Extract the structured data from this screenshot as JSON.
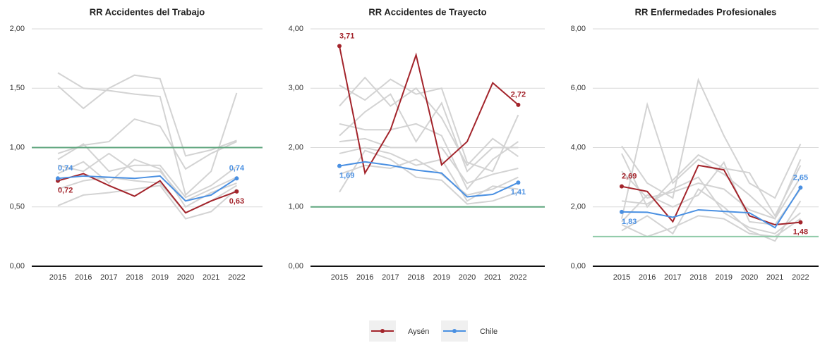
{
  "chart_data": [
    {
      "type": "line",
      "title": "RR Accidentes del Trabajo",
      "categories": [
        "2015",
        "2016",
        "2017",
        "2018",
        "2019",
        "2020",
        "2021",
        "2022"
      ],
      "ylim": [
        0,
        2
      ],
      "yticks": [
        {
          "value": 0,
          "label": "0,00"
        },
        {
          "value": 0.5,
          "label": "0,50"
        },
        {
          "value": 1,
          "label": "1,00"
        },
        {
          "value": 1.5,
          "label": "1,50"
        },
        {
          "value": 2,
          "label": "2,00"
        }
      ],
      "grid": true,
      "reference_line": {
        "value": 1,
        "color": "#5fa67e"
      },
      "series": [
        {
          "color": "#d3d3d3",
          "values": [
            1.63,
            1.5,
            1.48,
            1.45,
            1.43,
            0.6,
            0.8,
            1.46
          ]
        },
        {
          "color": "#d3d3d3",
          "values": [
            1.52,
            1.33,
            1.5,
            1.61,
            1.58,
            0.93,
            0.98,
            1.06
          ]
        },
        {
          "color": "#d3d3d3",
          "values": [
            0.95,
            1.02,
            1.05,
            1.24,
            1.18,
            0.82,
            0.95,
            1.05
          ]
        },
        {
          "color": "#d3d3d3",
          "values": [
            0.9,
            1.03,
            0.8,
            0.85,
            0.85,
            0.58,
            0.68,
            0.84
          ]
        },
        {
          "color": "#d3d3d3",
          "values": [
            0.85,
            0.8,
            0.95,
            0.8,
            0.8,
            0.55,
            0.65,
            0.75
          ]
        },
        {
          "color": "#d3d3d3",
          "values": [
            0.65,
            0.72,
            0.75,
            0.72,
            0.7,
            0.45,
            0.55,
            0.68
          ]
        },
        {
          "color": "#d3d3d3",
          "values": [
            0.51,
            0.6,
            0.62,
            0.65,
            0.68,
            0.4,
            0.46,
            0.65
          ]
        },
        {
          "color": "#d3d3d3",
          "values": [
            0.78,
            0.88,
            0.7,
            0.9,
            0.82,
            0.5,
            0.62,
            0.7
          ]
        },
        {
          "name": "Aysén",
          "color": "#a3242b",
          "values": [
            0.72,
            0.78,
            0.68,
            0.59,
            0.72,
            0.45,
            0.55,
            0.63
          ],
          "value_labels": [
            "0,72",
            null,
            null,
            null,
            null,
            null,
            null,
            "0,63"
          ]
        },
        {
          "name": "Chile",
          "color": "#4a90e2",
          "values": [
            0.74,
            0.76,
            0.75,
            0.74,
            0.76,
            0.55,
            0.6,
            0.74
          ],
          "value_labels": [
            "0,74",
            null,
            null,
            null,
            null,
            null,
            null,
            "0,74"
          ]
        }
      ]
    },
    {
      "type": "line",
      "title": "RR Accidentes de Trayecto",
      "categories": [
        "2015",
        "2016",
        "2017",
        "2018",
        "2019",
        "2020",
        "2021",
        "2022"
      ],
      "ylim": [
        0,
        4
      ],
      "yticks": [
        {
          "value": 0,
          "label": "0,00"
        },
        {
          "value": 1,
          "label": "1,00"
        },
        {
          "value": 2,
          "label": "2,00"
        },
        {
          "value": 3,
          "label": "3,00"
        },
        {
          "value": 4,
          "label": "4,00"
        }
      ],
      "grid": true,
      "reference_line": {
        "value": 1,
        "color": "#5fa67e"
      },
      "series": [
        {
          "color": "#d3d3d3",
          "values": [
            3.05,
            2.8,
            3.15,
            2.9,
            3.0,
            1.75,
            1.6,
            2.55
          ]
        },
        {
          "color": "#d3d3d3",
          "values": [
            2.7,
            3.18,
            2.7,
            3.0,
            2.5,
            1.7,
            2.15,
            1.85
          ]
        },
        {
          "color": "#d3d3d3",
          "values": [
            2.4,
            2.3,
            2.3,
            2.4,
            2.2,
            1.3,
            1.8,
            2.1
          ]
        },
        {
          "color": "#d3d3d3",
          "values": [
            2.1,
            2.15,
            2.0,
            2.0,
            2.0,
            1.4,
            1.55,
            1.65
          ]
        },
        {
          "color": "#d3d3d3",
          "values": [
            1.9,
            2.0,
            1.9,
            1.7,
            1.8,
            1.1,
            1.35,
            1.3
          ]
        },
        {
          "color": "#d3d3d3",
          "values": [
            1.25,
            1.95,
            1.8,
            1.5,
            1.45,
            1.05,
            1.1,
            1.25
          ]
        },
        {
          "color": "#d3d3d3",
          "values": [
            2.2,
            2.6,
            2.9,
            2.1,
            2.75,
            1.6,
            2.0,
            2.0
          ]
        },
        {
          "color": "#d3d3d3",
          "values": [
            1.55,
            1.7,
            1.65,
            1.8,
            1.55,
            1.2,
            1.3,
            1.5
          ]
        },
        {
          "name": "Aysén",
          "color": "#a3242b",
          "values": [
            3.71,
            1.57,
            2.3,
            3.56,
            1.71,
            2.1,
            3.09,
            2.72
          ],
          "value_labels": [
            "3,71",
            null,
            null,
            null,
            null,
            null,
            null,
            "2,72"
          ]
        },
        {
          "name": "Chile",
          "color": "#4a90e2",
          "values": [
            1.69,
            1.76,
            1.7,
            1.62,
            1.57,
            1.17,
            1.21,
            1.41
          ],
          "value_labels": [
            "1,69",
            null,
            null,
            null,
            null,
            null,
            null,
            "1,41"
          ]
        }
      ]
    },
    {
      "type": "line",
      "title": "RR Enfermedades Profesionales",
      "categories": [
        "2015",
        "2016",
        "2017",
        "2018",
        "2019",
        "2020",
        "2021",
        "2022"
      ],
      "ylim": [
        0,
        8
      ],
      "yticks": [
        {
          "value": 0,
          "label": "0,00"
        },
        {
          "value": 2,
          "label": "2,00"
        },
        {
          "value": 4,
          "label": "4,00"
        },
        {
          "value": 6,
          "label": "6,00"
        },
        {
          "value": 8,
          "label": "8,00"
        }
      ],
      "grid": true,
      "reference_line": {
        "value": 1,
        "color": "#8fcaa8"
      },
      "series": [
        {
          "color": "#d3d3d3",
          "values": [
            4.05,
            2.8,
            2.3,
            6.28,
            4.4,
            2.8,
            2.3,
            4.12
          ]
        },
        {
          "color": "#d3d3d3",
          "values": [
            1.6,
            5.45,
            2.8,
            3.6,
            3.1,
            2.4,
            1.6,
            3.6
          ]
        },
        {
          "color": "#d3d3d3",
          "values": [
            3.8,
            2.0,
            2.9,
            3.75,
            3.3,
            3.15,
            1.7,
            3.4
          ]
        },
        {
          "color": "#d3d3d3",
          "values": [
            1.5,
            2.4,
            2.0,
            2.4,
            3.5,
            1.5,
            1.4,
            2.6
          ]
        },
        {
          "color": "#d3d3d3",
          "values": [
            1.2,
            1.7,
            1.1,
            2.6,
            2.0,
            1.2,
            0.85,
            2.2
          ]
        },
        {
          "color": "#d3d3d3",
          "values": [
            2.2,
            2.1,
            2.6,
            3.0,
            1.8,
            1.3,
            1.1,
            1.8
          ]
        },
        {
          "color": "#d3d3d3",
          "values": [
            1.4,
            1.0,
            1.3,
            1.7,
            1.6,
            1.1,
            1.0,
            1.6
          ]
        },
        {
          "color": "#d3d3d3",
          "values": [
            3.2,
            2.3,
            2.5,
            2.8,
            2.6,
            1.9,
            1.6,
            3.0
          ]
        },
        {
          "name": "Aysén",
          "color": "#a3242b",
          "values": [
            2.69,
            2.52,
            1.5,
            3.4,
            3.25,
            1.7,
            1.4,
            1.48
          ],
          "value_labels": [
            "2,69",
            null,
            null,
            null,
            null,
            null,
            null,
            "1,48"
          ]
        },
        {
          "name": "Chile",
          "color": "#4a90e2",
          "values": [
            1.83,
            1.82,
            1.65,
            1.9,
            1.85,
            1.8,
            1.3,
            2.65
          ],
          "value_labels": [
            "1,83",
            null,
            null,
            null,
            null,
            null,
            null,
            "2,65"
          ]
        }
      ]
    }
  ]
}
